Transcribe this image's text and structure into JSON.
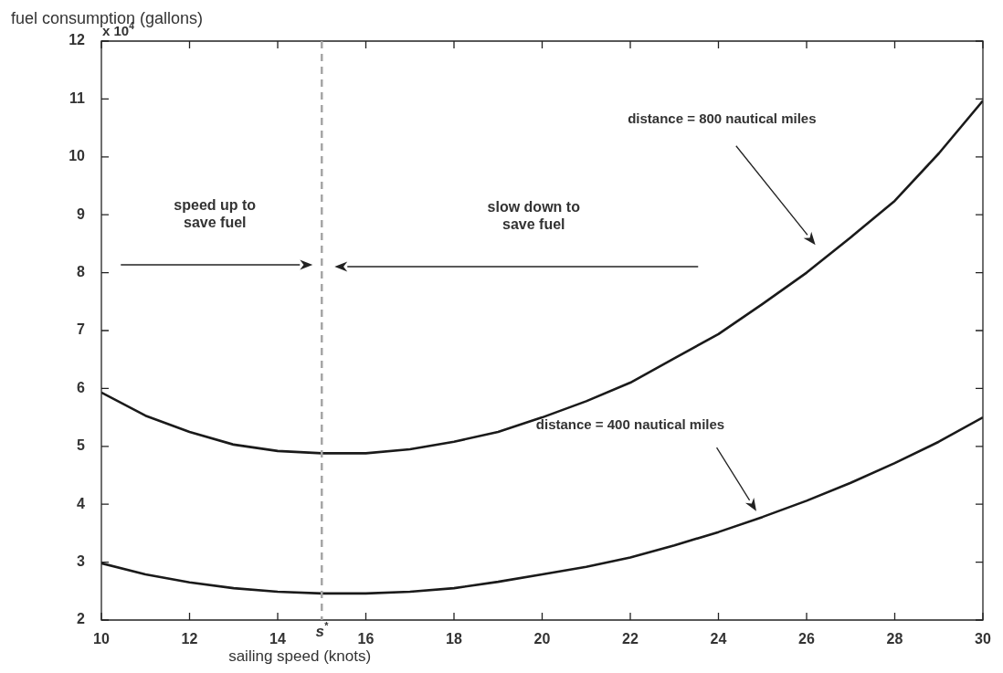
{
  "chart_data": {
    "type": "line",
    "xlabel": "sailing speed (knots)",
    "ylabel": "fuel consumption (gallons)",
    "x": [
      10,
      11,
      12,
      13,
      14,
      15,
      16,
      17,
      18,
      19,
      20,
      21,
      22,
      23,
      24,
      25,
      26,
      27,
      28,
      29,
      30
    ],
    "series": [
      {
        "color": "#1a1a1a",
        "values": [
          5.93,
          5.53,
          5.25,
          5.03,
          4.92,
          4.88,
          4.88,
          4.95,
          5.08,
          5.25,
          5.5,
          5.78,
          6.1,
          6.52,
          6.94,
          7.46,
          8.0,
          8.61,
          9.24,
          10.06,
          10.97
        ]
      },
      {
        "color": "#1a1a1a",
        "values": [
          2.98,
          2.79,
          2.65,
          2.55,
          2.49,
          2.46,
          2.46,
          2.49,
          2.55,
          2.66,
          2.79,
          2.92,
          3.08,
          3.29,
          3.52,
          3.78,
          4.06,
          4.37,
          4.71,
          5.08,
          5.5
        ]
      }
    ],
    "xlim": [
      10,
      30
    ],
    "xticks": [
      10,
      12,
      14,
      16,
      18,
      20,
      22,
      24,
      26,
      28,
      30
    ],
    "ylim": [
      2,
      12
    ],
    "yticks": [
      2,
      3,
      4,
      5,
      6,
      7,
      8,
      9,
      10,
      11,
      12
    ],
    "grid": false,
    "legend": false,
    "marker": "none",
    "line_style": "solid",
    "ref_lines": [
      {
        "axis": "x",
        "value": 15,
        "label": "s$^{*}$",
        "color": "#a6a6a6",
        "line_style": "dashed"
      }
    ],
    "annotations": [
      "x 10$^{4}$",
      "speed up to\nsave fuel",
      "slow down to\nsave fuel",
      "distance = 800 nautical miles",
      "distance = 400 nautical miles"
    ]
  }
}
